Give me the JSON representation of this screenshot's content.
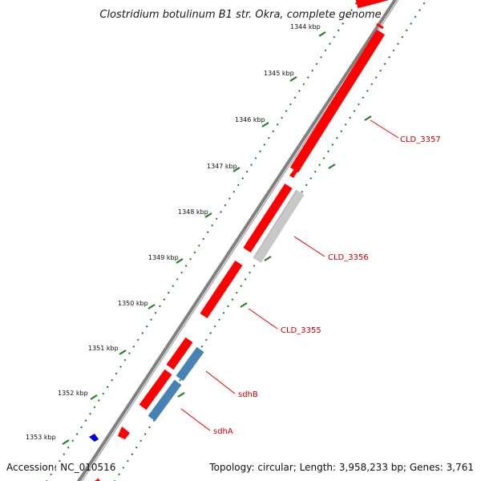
{
  "title": "Clostridium botulinum B1 str. Okra, complete genome",
  "footer": {
    "accession": "Accession: NC_010516",
    "topology": "Topology: circular; Length: 3,958,233 bp; Genes: 3,761"
  },
  "ticks": [
    "1344 kbp",
    "1345 kbp",
    "1346 kbp",
    "1347 kbp",
    "1348 kbp",
    "1349 kbp",
    "1350 kbp",
    "1351 kbp",
    "1352 kbp",
    "1353 kbp"
  ],
  "gene_labels": [
    "CLD_3357",
    "CLD_3356",
    "CLD_3355",
    "sdhB",
    "sdhA"
  ],
  "colors": {
    "forward_cds": "#ff0000",
    "reverse_cds": "#4682b4",
    "other_cds": "#c8c8c8",
    "label_line": "#e00000",
    "tick_dots": "#1a7f1a",
    "backbone": "#808080",
    "marker": "#0000dd"
  }
}
